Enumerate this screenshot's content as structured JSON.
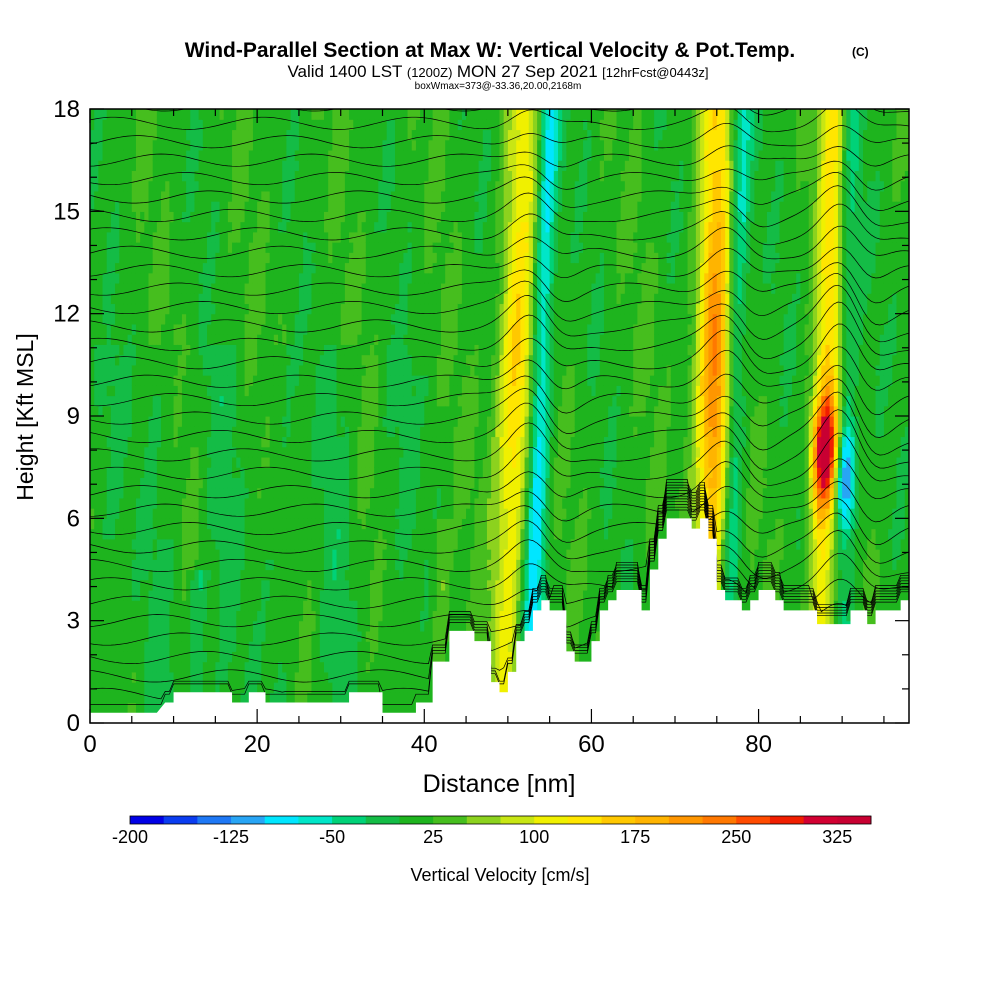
{
  "chart_data": {
    "type": "heatmap",
    "title": "Wind-Parallel Section at Max W: Vertical Velocity & Pot.Temp.",
    "copyright": "(C)",
    "subtitle": {
      "valid": "Valid 1400 LST",
      "utc": "(1200Z)",
      "date": "MON 27 Sep 2021",
      "forecast": "[12hrFcst@0443z]"
    },
    "box_info": "boxWmax=373@-33.36,20.00,2168m",
    "xlabel": "Distance [nm]",
    "ylabel": "Height [Kft MSL]",
    "xlim": [
      0,
      98
    ],
    "ylim": [
      0,
      18
    ],
    "x_ticks": [
      0,
      20,
      40,
      60,
      80
    ],
    "y_ticks": [
      0,
      3,
      6,
      9,
      12,
      15,
      18
    ],
    "colorbar": {
      "label": "Vertical Velocity [cm/s]",
      "min": -200,
      "max": 350,
      "step": 25,
      "tick_labels": [
        "-200",
        "-125",
        "-50",
        "25",
        "100",
        "175",
        "250",
        "325"
      ],
      "colors": [
        "#0000e6",
        "#0a3cf0",
        "#1e78f5",
        "#28a5f5",
        "#00e6ff",
        "#00e6c8",
        "#00d278",
        "#14bc46",
        "#1eb41e",
        "#46be1e",
        "#8cd21e",
        "#c8e614",
        "#f0f000",
        "#ffe600",
        "#ffc800",
        "#ffb400",
        "#ff9600",
        "#ff7800",
        "#ff4b00",
        "#f01e00",
        "#d20032",
        "#c80032"
      ]
    },
    "terrain_kft": [
      [
        0,
        0.3
      ],
      [
        8,
        0.3
      ],
      [
        9,
        0.6
      ],
      [
        10,
        0.6
      ],
      [
        10,
        0.9
      ],
      [
        17,
        0.9
      ],
      [
        17,
        0.6
      ],
      [
        19,
        0.6
      ],
      [
        19,
        0.9
      ],
      [
        21,
        0.9
      ],
      [
        21,
        0.6
      ],
      [
        31,
        0.6
      ],
      [
        31,
        0.9
      ],
      [
        35,
        0.9
      ],
      [
        35,
        0.3
      ],
      [
        39,
        0.3
      ],
      [
        39,
        0.6
      ],
      [
        41,
        0.6
      ],
      [
        41,
        1.8
      ],
      [
        43,
        1.8
      ],
      [
        43,
        2.7
      ],
      [
        46,
        2.7
      ],
      [
        46,
        2.4
      ],
      [
        48,
        2.4
      ],
      [
        48,
        1.2
      ],
      [
        49,
        1.2
      ],
      [
        49,
        0.9
      ],
      [
        50,
        0.9
      ],
      [
        50,
        1.5
      ],
      [
        51,
        1.5
      ],
      [
        51,
        2.4
      ],
      [
        52,
        2.4
      ],
      [
        52,
        2.7
      ],
      [
        53,
        2.7
      ],
      [
        53,
        3.3
      ],
      [
        54,
        3.3
      ],
      [
        54,
        3.6
      ],
      [
        55,
        3.6
      ],
      [
        55,
        3.3
      ],
      [
        57,
        3.3
      ],
      [
        57,
        2.1
      ],
      [
        58,
        2.1
      ],
      [
        58,
        1.8
      ],
      [
        60,
        1.8
      ],
      [
        60,
        2.4
      ],
      [
        61,
        2.4
      ],
      [
        61,
        3.3
      ],
      [
        62,
        3.3
      ],
      [
        62,
        3.6
      ],
      [
        63,
        3.6
      ],
      [
        63,
        3.9
      ],
      [
        66,
        3.9
      ],
      [
        66,
        3.3
      ],
      [
        67,
        3.3
      ],
      [
        67,
        4.5
      ],
      [
        68,
        4.5
      ],
      [
        68,
        5.4
      ],
      [
        69,
        5.4
      ],
      [
        69,
        6.0
      ],
      [
        72,
        6.0
      ],
      [
        72,
        5.7
      ],
      [
        73,
        5.7
      ],
      [
        73,
        6.0
      ],
      [
        74,
        6.0
      ],
      [
        74,
        5.4
      ],
      [
        75,
        5.4
      ],
      [
        75,
        3.9
      ],
      [
        76,
        3.9
      ],
      [
        76,
        3.6
      ],
      [
        78,
        3.6
      ],
      [
        78,
        3.3
      ],
      [
        79,
        3.3
      ],
      [
        79,
        3.6
      ],
      [
        80,
        3.6
      ],
      [
        80,
        3.9
      ],
      [
        82,
        3.9
      ],
      [
        82,
        3.6
      ],
      [
        83,
        3.6
      ],
      [
        83,
        3.3
      ],
      [
        87,
        3.3
      ],
      [
        87,
        2.9
      ],
      [
        91,
        2.9
      ],
      [
        91,
        3.3
      ],
      [
        93,
        3.3
      ],
      [
        93,
        2.9
      ],
      [
        94,
        2.9
      ],
      [
        94,
        3.3
      ],
      [
        97,
        3.3
      ],
      [
        97,
        3.6
      ],
      [
        98,
        3.6
      ]
    ],
    "updraft_bands": [
      {
        "name": "band-51nm",
        "x_top": 52,
        "x_bottom": 50,
        "base_kft": 3.0,
        "peak_cms": 150
      },
      {
        "name": "band-74nm",
        "x_top": 75,
        "x_bottom": 74.5,
        "base_kft": 5.5,
        "peak_cms": 220
      },
      {
        "name": "band-88nm",
        "x_top": 89,
        "x_bottom": 87.5,
        "base_kft": 3.3,
        "peak_cms": 373
      }
    ],
    "downdraft_bands": [
      {
        "name": "down-54nm",
        "x_top": 55,
        "x_bottom": 52.5,
        "peak_cms": -110
      },
      {
        "name": "down-77nm",
        "x_top": 78,
        "x_bottom": 76,
        "peak_cms": -90
      },
      {
        "name": "down-90nm",
        "x_top": 91,
        "x_bottom": 90,
        "peak_cms": -180
      }
    ],
    "isentrope_count": 34
  }
}
